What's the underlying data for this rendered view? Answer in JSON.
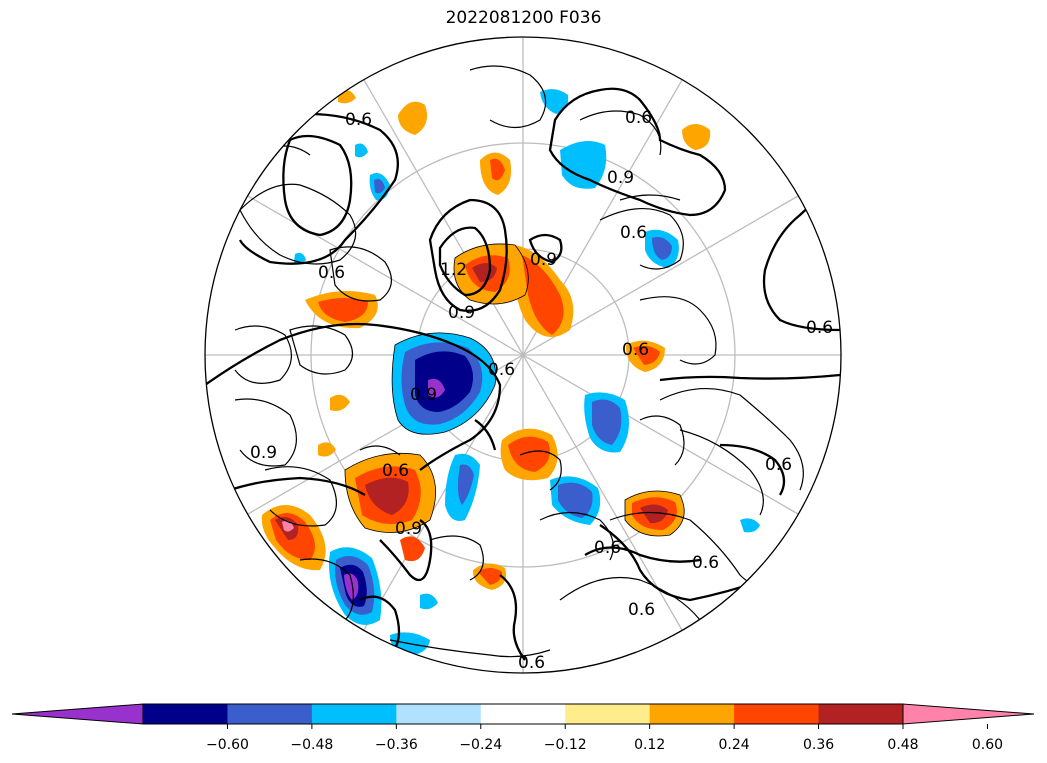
{
  "title": "2022081200 F036",
  "colorbar": {
    "ticks": [
      "−0.60",
      "−0.48",
      "−0.36",
      "−0.24",
      "−0.12",
      "0.12",
      "0.24",
      "0.36",
      "0.48",
      "0.60"
    ],
    "colors": [
      "#9932cc",
      "#00008b",
      "#3a5fcd",
      "#00bfff",
      "#b0e2ff",
      "#ffffff",
      "#ffec8b",
      "#ffa500",
      "#ff4500",
      "#b22222",
      "#ff82ab"
    ]
  },
  "contour_labels": [
    "0.6",
    "0.6",
    "0.9",
    "0.6",
    "0.9",
    "1.2",
    "0.9",
    "0.6",
    "0.6",
    "0.6",
    "0.9",
    "0.6",
    "0.9",
    "0.6",
    "0.6",
    "0.6",
    "0.6",
    "0.6",
    "0.9",
    "0.6"
  ],
  "colors": {
    "warm_light": "#ffa500",
    "warm_mid": "#ff4500",
    "warm_strong": "#b22222",
    "cold_light": "#00bfff",
    "cold_mid": "#3a5fcd",
    "cold_strong": "#00008b"
  }
}
